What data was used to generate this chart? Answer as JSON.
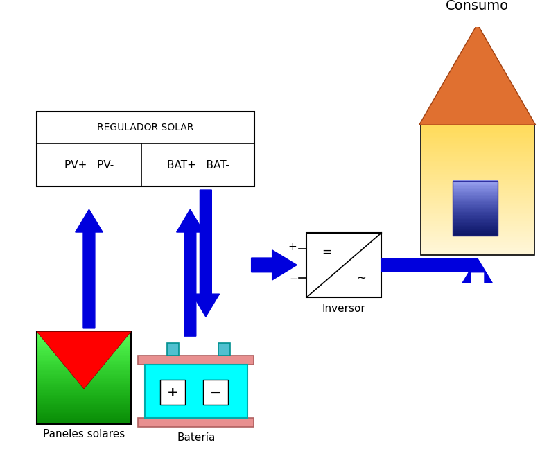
{
  "bg_color": "#ffffff",
  "arrow_color": "#0000dd",
  "regulador_label": "REGULADOR SOLAR",
  "pv_label": "PV+   PV-",
  "bat_label": "BAT+   BAT-",
  "paneles_label": "Paneles solares",
  "bateria_label": "Batería",
  "inversor_label": "Inversor",
  "consumo_label": "Consumo"
}
